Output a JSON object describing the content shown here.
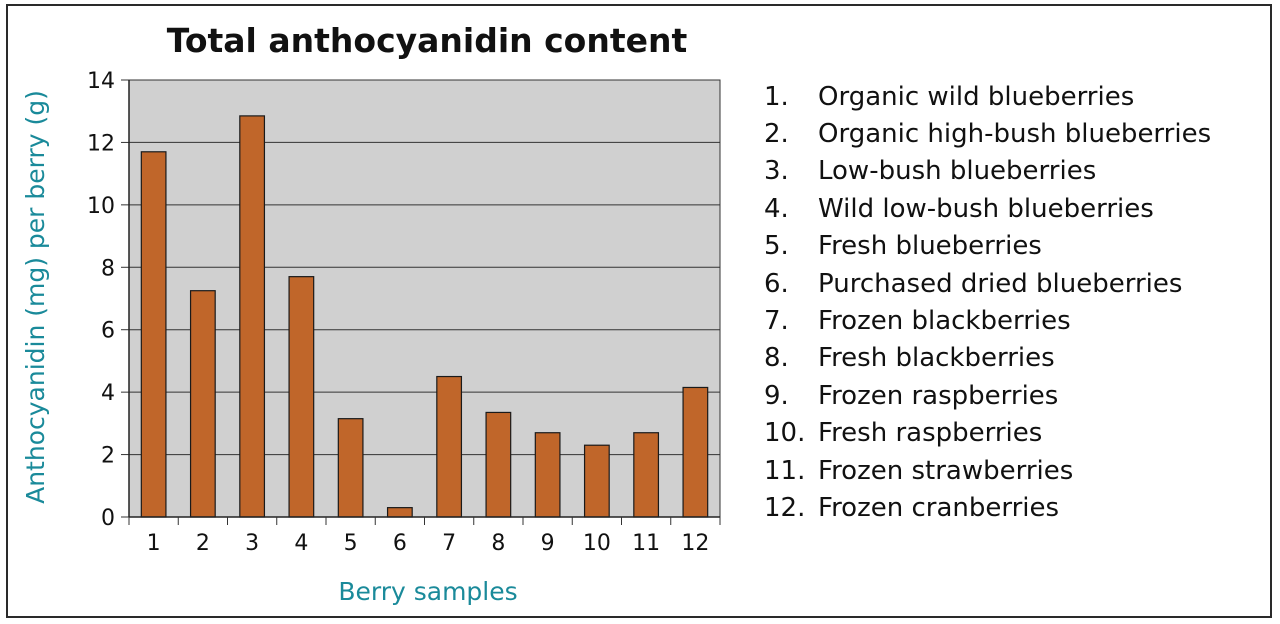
{
  "chart_data": {
    "type": "bar",
    "title": "Total anthocyanidin content",
    "xlabel": "Berry samples",
    "ylabel": "Anthocyanidin (mg) per berry (g)",
    "categories": [
      "1",
      "2",
      "3",
      "4",
      "5",
      "6",
      "7",
      "8",
      "9",
      "10",
      "11",
      "12"
    ],
    "values": [
      11.7,
      7.25,
      12.85,
      7.7,
      3.15,
      0.3,
      4.5,
      3.35,
      2.7,
      2.3,
      2.7,
      4.15
    ],
    "ylim": [
      0,
      14
    ],
    "yticks": [
      "0",
      "2",
      "4",
      "6",
      "8",
      "10",
      "12",
      "14"
    ],
    "grid": true,
    "colors": {
      "bar": "#c0662a",
      "bar_edge": "#1a1a1a",
      "plot_bg": "#d0d0d0",
      "axis_label": "#1a8a9a"
    }
  },
  "legend": {
    "items": [
      {
        "num": "1.",
        "label": "Organic wild blueberries"
      },
      {
        "num": "2.",
        "label": "Organic high-bush blueberries"
      },
      {
        "num": "3.",
        "label": "Low-bush blueberries"
      },
      {
        "num": "4.",
        "label": "Wild low-bush blueberries"
      },
      {
        "num": "5.",
        "label": "Fresh blueberries"
      },
      {
        "num": "6.",
        "label": "Purchased dried blueberries"
      },
      {
        "num": "7.",
        "label": "Frozen blackberries"
      },
      {
        "num": "8.",
        "label": "Fresh blackberries"
      },
      {
        "num": "9.",
        "label": "Frozen raspberries"
      },
      {
        "num": "10.",
        "label": "Fresh raspberries"
      },
      {
        "num": "11.",
        "label": "Frozen strawberries"
      },
      {
        "num": "12.",
        "label": "Frozen cranberries"
      }
    ]
  }
}
